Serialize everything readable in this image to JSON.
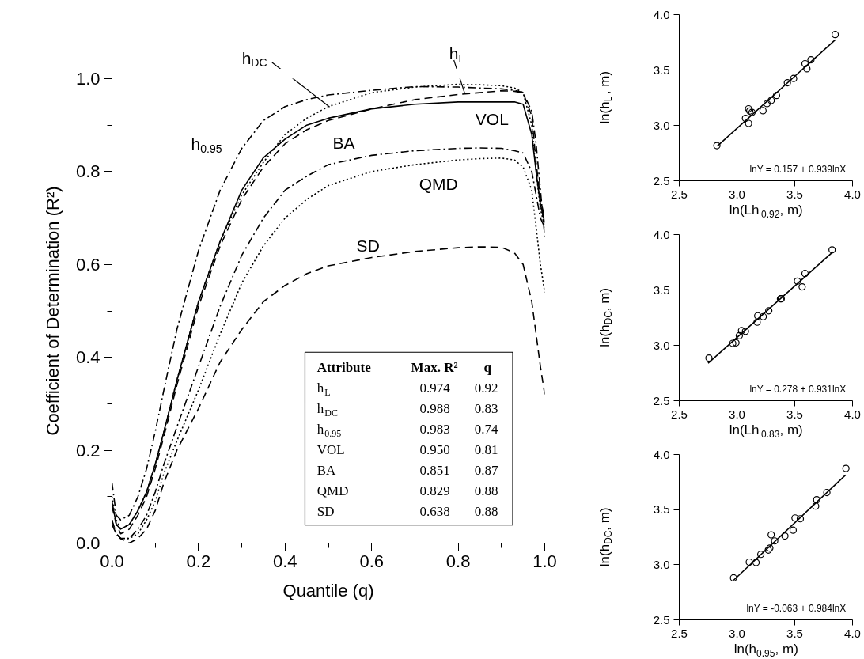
{
  "chart_data": [
    {
      "type": "line",
      "xlabel": "Quantile (q)",
      "ylabel": "Coefficient of Determination (R²)",
      "x": [
        0,
        0.01,
        0.02,
        0.04,
        0.06,
        0.08,
        0.1,
        0.12,
        0.15,
        0.2,
        0.25,
        0.3,
        0.35,
        0.4,
        0.45,
        0.5,
        0.6,
        0.7,
        0.8,
        0.85,
        0.9,
        0.93,
        0.95,
        0.97,
        0.98,
        0.99,
        1.0
      ],
      "xlim": [
        0,
        1.0
      ],
      "ylim": [
        0,
        1.0
      ],
      "xticks": [
        {
          "value": 0,
          "label": "0.0"
        },
        {
          "value": 0.1,
          "label": null
        },
        {
          "value": 0.2,
          "label": "0.2"
        },
        {
          "value": 0.3,
          "label": null
        },
        {
          "value": 0.4,
          "label": "0.4"
        },
        {
          "value": 0.5,
          "label": null
        },
        {
          "value": 0.6,
          "label": "0.6"
        },
        {
          "value": 0.7,
          "label": null
        },
        {
          "value": 0.8,
          "label": "0.8"
        },
        {
          "value": 0.9,
          "label": null
        },
        {
          "value": 1.0,
          "label": "1.0"
        }
      ],
      "yticks": [
        {
          "value": 0,
          "label": "0.0"
        },
        {
          "value": 0.1,
          "label": null
        },
        {
          "value": 0.2,
          "label": "0.2"
        },
        {
          "value": 0.3,
          "label": null
        },
        {
          "value": 0.4,
          "label": "0.4"
        },
        {
          "value": 0.5,
          "label": null
        },
        {
          "value": 0.6,
          "label": "0.6"
        },
        {
          "value": 0.7,
          "label": null
        },
        {
          "value": 0.8,
          "label": "0.8"
        },
        {
          "value": 0.9,
          "label": null
        },
        {
          "value": 1.0,
          "label": "1.0"
        }
      ],
      "series": [
        {
          "name": "h$_{L}$",
          "color": "#000000",
          "line_style": "dashed",
          "values": [
            0.08,
            0.04,
            0.02,
            0.03,
            0.06,
            0.1,
            0.16,
            0.23,
            0.34,
            0.51,
            0.64,
            0.74,
            0.81,
            0.86,
            0.89,
            0.91,
            0.935,
            0.955,
            0.966,
            0.97,
            0.974,
            0.973,
            0.97,
            0.92,
            0.82,
            0.74,
            0.7
          ]
        },
        {
          "name": "h$_{DC}$",
          "color": "#000000",
          "line_style": "dotted",
          "values": [
            0.1,
            0.05,
            0.03,
            0.04,
            0.07,
            0.11,
            0.17,
            0.24,
            0.35,
            0.52,
            0.65,
            0.75,
            0.82,
            0.88,
            0.915,
            0.94,
            0.97,
            0.982,
            0.988,
            0.987,
            0.985,
            0.98,
            0.97,
            0.9,
            0.8,
            0.72,
            0.68
          ]
        },
        {
          "name": "h$_{0.95}$",
          "color": "#000000",
          "line_style": "dashdot",
          "values": [
            0.13,
            0.06,
            0.05,
            0.06,
            0.1,
            0.16,
            0.24,
            0.33,
            0.46,
            0.63,
            0.76,
            0.85,
            0.91,
            0.94,
            0.955,
            0.965,
            0.975,
            0.983,
            0.982,
            0.98,
            0.978,
            0.975,
            0.97,
            0.93,
            0.86,
            0.76,
            0.66
          ]
        },
        {
          "name": "VOL",
          "color": "#000000",
          "line_style": "solid",
          "values": [
            0.09,
            0.04,
            0.03,
            0.04,
            0.07,
            0.11,
            0.17,
            0.24,
            0.35,
            0.52,
            0.65,
            0.76,
            0.83,
            0.87,
            0.9,
            0.915,
            0.935,
            0.945,
            0.95,
            0.95,
            0.95,
            0.95,
            0.945,
            0.88,
            0.8,
            0.73,
            0.69
          ]
        },
        {
          "name": "BA",
          "color": "#000000",
          "line_style": "dashdot",
          "values": [
            0.05,
            0.02,
            0.01,
            0.01,
            0.03,
            0.06,
            0.11,
            0.17,
            0.25,
            0.38,
            0.51,
            0.62,
            0.7,
            0.76,
            0.79,
            0.815,
            0.835,
            0.845,
            0.85,
            0.851,
            0.85,
            0.845,
            0.84,
            0.8,
            0.75,
            0.7,
            0.68
          ]
        },
        {
          "name": "QMD",
          "color": "#000000",
          "line_style": "dotted",
          "values": [
            0.05,
            0.02,
            0.01,
            0.01,
            0.02,
            0.05,
            0.09,
            0.15,
            0.22,
            0.33,
            0.45,
            0.56,
            0.64,
            0.7,
            0.74,
            0.77,
            0.8,
            0.815,
            0.825,
            0.828,
            0.829,
            0.825,
            0.81,
            0.76,
            0.68,
            0.6,
            0.54
          ]
        },
        {
          "name": "SD",
          "color": "#000000",
          "line_style": "dashed",
          "values": [
            0.04,
            0.02,
            0.01,
            0.0,
            0.01,
            0.03,
            0.07,
            0.13,
            0.2,
            0.29,
            0.39,
            0.46,
            0.52,
            0.555,
            0.58,
            0.597,
            0.615,
            0.628,
            0.636,
            0.638,
            0.637,
            0.625,
            0.6,
            0.52,
            0.45,
            0.38,
            0.32
          ]
        }
      ],
      "annotations": [
        "Attribute",
        "Max. R²",
        "q",
        "h$_{L}$",
        "0.974",
        "0.92",
        "h$_{DC}$",
        "0.988",
        "0.83",
        "h$_{0.95}$",
        "0.983",
        "0.74",
        "VOL",
        "0.950",
        "0.81",
        "BA",
        "0.851",
        "0.87",
        "QMD",
        "0.829",
        "0.88",
        "SD",
        "0.638",
        "0.88"
      ]
    },
    {
      "type": "scatter",
      "xlabel": "ln(Lh$_{0.92}$, m)",
      "ylabel": "ln(h$_{L}$, m)",
      "xlim": [
        2.5,
        4.0
      ],
      "ylim": [
        2.5,
        4.0
      ],
      "xticks": [
        {
          "value": 2.5,
          "label": "2.5"
        },
        {
          "value": 3.0,
          "label": "3.0"
        },
        {
          "value": 3.5,
          "label": "3.5"
        },
        {
          "value": 4.0,
          "label": "4.0"
        }
      ],
      "yticks": [
        {
          "value": 2.5,
          "label": "2.5"
        },
        {
          "value": 3.0,
          "label": "3.0"
        },
        {
          "value": 3.5,
          "label": "3.5"
        },
        {
          "value": 4.0,
          "label": "4.0"
        }
      ],
      "series": [
        {
          "type": "scatter",
          "marker": "circle",
          "color": "#000000",
          "x": [
            2.826,
            3.073,
            3.1,
            3.1,
            3.11,
            3.13,
            3.225,
            3.26,
            3.296,
            3.342,
            3.436,
            3.49,
            3.589,
            3.605,
            3.64,
            3.85
          ],
          "values": [
            2.817,
            3.064,
            3.018,
            3.15,
            3.13,
            3.117,
            3.133,
            3.197,
            3.225,
            3.27,
            3.385,
            3.424,
            3.557,
            3.511,
            3.592,
            3.82
          ]
        },
        {
          "type": "line",
          "color": "#000000",
          "x": [
            2.83,
            3.85
          ],
          "values": [
            2.814,
            3.772
          ]
        }
      ],
      "annotations": [
        "lnY = 0.157 + 0.939lnX"
      ]
    },
    {
      "type": "scatter",
      "xlabel": "ln(Lh$_{0.83}$, m)",
      "ylabel": "ln(h$_{DC}$, m)",
      "xlim": [
        2.5,
        4.0
      ],
      "ylim": [
        2.5,
        4.0
      ],
      "xticks": [
        {
          "value": 2.5,
          "label": "2.5"
        },
        {
          "value": 3.0,
          "label": "3.0"
        },
        {
          "value": 3.5,
          "label": "3.5"
        },
        {
          "value": 4.0,
          "label": "4.0"
        }
      ],
      "yticks": [
        {
          "value": 2.5,
          "label": "2.5"
        },
        {
          "value": 3.0,
          "label": "3.0"
        },
        {
          "value": 3.5,
          "label": "3.5"
        },
        {
          "value": 4.0,
          "label": "4.0"
        }
      ],
      "series": [
        {
          "type": "scatter",
          "marker": "circle",
          "color": "#000000",
          "x": [
            2.757,
            2.963,
            2.991,
            3.02,
            3.039,
            3.073,
            3.174,
            3.179,
            3.227,
            3.275,
            3.376,
            3.383,
            3.523,
            3.564,
            3.589,
            3.823
          ],
          "values": [
            2.885,
            3.018,
            3.023,
            3.087,
            3.133,
            3.126,
            3.209,
            3.266,
            3.259,
            3.312,
            3.42,
            3.42,
            3.58,
            3.528,
            3.649,
            3.862
          ]
        },
        {
          "type": "line",
          "color": "#000000",
          "x": [
            2.75,
            3.83
          ],
          "values": [
            2.838,
            3.844
          ]
        }
      ],
      "annotations": [
        "lnY = 0.278 + 0.931lnX"
      ]
    },
    {
      "type": "scatter",
      "xlabel": "ln(h$_{0.95}$, m)",
      "ylabel": "ln(h$_{DC}$, m)",
      "xlim": [
        2.5,
        4.0
      ],
      "ylim": [
        2.5,
        4.0
      ],
      "xticks": [
        {
          "value": 2.5,
          "label": "2.5"
        },
        {
          "value": 3.0,
          "label": "3.0"
        },
        {
          "value": 3.5,
          "label": "3.5"
        },
        {
          "value": 4.0,
          "label": "4.0"
        }
      ],
      "yticks": [
        {
          "value": 2.5,
          "label": "2.5"
        },
        {
          "value": 3.0,
          "label": "3.0"
        },
        {
          "value": 3.5,
          "label": "3.5"
        },
        {
          "value": 4.0,
          "label": "4.0"
        }
      ],
      "series": [
        {
          "type": "scatter",
          "marker": "circle",
          "color": "#000000",
          "x": [
            2.97,
            3.106,
            3.165,
            3.206,
            3.271,
            3.284,
            3.296,
            3.326,
            3.415,
            3.486,
            3.502,
            3.548,
            3.681,
            3.69,
            3.778,
            3.943
          ],
          "values": [
            2.881,
            3.024,
            3.02,
            3.094,
            3.133,
            3.151,
            3.271,
            3.216,
            3.26,
            3.313,
            3.424,
            3.417,
            3.532,
            3.59,
            3.655,
            3.874
          ]
        },
        {
          "type": "line",
          "color": "#000000",
          "x": [
            2.97,
            3.94
          ],
          "values": [
            2.859,
            3.814
          ]
        }
      ],
      "annotations": [
        "lnY = -0.063 + 0.984lnX"
      ]
    }
  ]
}
